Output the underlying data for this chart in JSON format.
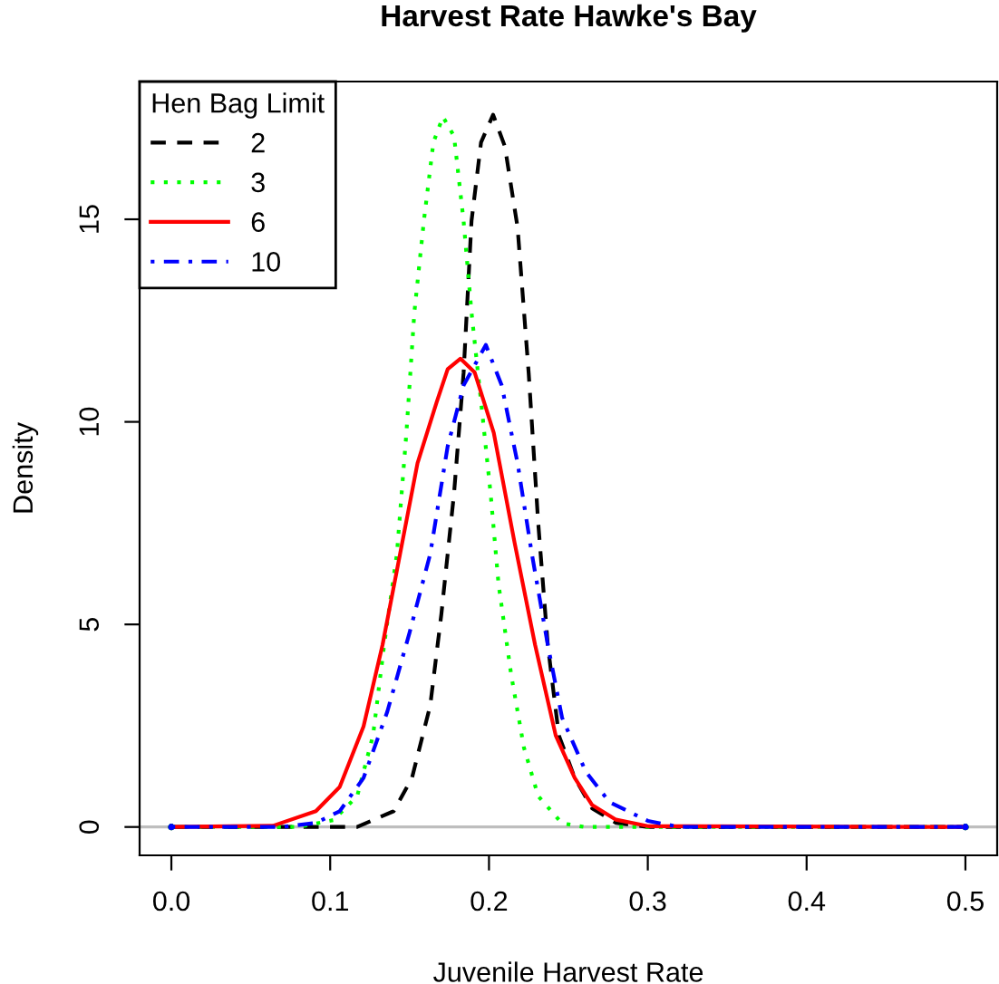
{
  "chart_data": {
    "type": "line",
    "title": "Harvest Rate Hawke's Bay",
    "xlabel": "Juvenile Harvest Rate",
    "ylabel": "Density",
    "legend_title": "Hen Bag Limit",
    "legend": "top left",
    "grid": false,
    "marker": "none",
    "xlim": [
      -0.02,
      0.52
    ],
    "ylim": [
      -0.7,
      18.4
    ],
    "xticks": [
      {
        "value": 0,
        "label": "0.0"
      },
      0.1,
      0.2,
      0.3,
      0.4,
      0.5
    ],
    "yticks": [
      0,
      5,
      10,
      15
    ],
    "ref_lines": [
      {
        "axis": "y",
        "value": 0,
        "color": "#bebebe",
        "line_style": "solid"
      }
    ],
    "series": [
      {
        "name": "2",
        "color": "#000000",
        "line_style": "dashed",
        "x": [
          0,
          0.1,
          0.117,
          0.14,
          0.1515,
          0.163,
          0.17,
          0.178,
          0.184,
          0.189,
          0.195,
          0.2026,
          0.21,
          0.218,
          0.225,
          0.231,
          0.237,
          0.244,
          0.254,
          0.265,
          0.28,
          0.3,
          0.5
        ],
        "values": [
          0,
          0,
          0,
          0.39,
          1.21,
          3.0,
          5.25,
          8.24,
          11.2,
          14.96,
          16.9,
          17.58,
          16.8,
          14.8,
          11.2,
          7.5,
          4.5,
          2.26,
          1.21,
          0.46,
          0.1,
          0,
          0
        ]
      },
      {
        "name": "3",
        "color": "#00ff00",
        "line_style": "dotted",
        "x": [
          0,
          0.08,
          0.102,
          0.117,
          0.127,
          0.134,
          0.142,
          0.148,
          0.153,
          0.159,
          0.165,
          0.171,
          0.178,
          0.184,
          0.189,
          0.195,
          0.201,
          0.206,
          0.214,
          0.222,
          0.231,
          0.246,
          0.26,
          0.5
        ],
        "values": [
          0,
          0,
          0.17,
          0.76,
          2.26,
          4.5,
          6.74,
          9.73,
          12.7,
          14.96,
          16.9,
          17.53,
          17.05,
          14.96,
          12.7,
          10.5,
          8.24,
          6.0,
          3.75,
          1.96,
          0.76,
          0.09,
          0,
          0
        ]
      },
      {
        "name": "6",
        "color": "#ff0000",
        "line_style": "solid",
        "x": [
          0,
          0.064,
          0.091,
          0.106,
          0.121,
          0.133,
          0.144,
          0.155,
          0.167,
          0.174,
          0.182,
          0.191,
          0.203,
          0.216,
          0.229,
          0.242,
          0.254,
          0.265,
          0.28,
          0.3,
          0.5
        ],
        "values": [
          0,
          0.03,
          0.39,
          0.99,
          2.48,
          4.5,
          6.74,
          8.98,
          10.48,
          11.3,
          11.56,
          11.22,
          9.73,
          7.04,
          4.5,
          2.26,
          1.21,
          0.54,
          0.18,
          0.02,
          0
        ]
      },
      {
        "name": "10",
        "color": "#0000ff",
        "line_style": "dashdot",
        "x": [
          0,
          0.07,
          0.091,
          0.106,
          0.121,
          0.136,
          0.15,
          0.163,
          0.174,
          0.184,
          0.198,
          0.208,
          0.218,
          0.227,
          0.237,
          0.246,
          0.261,
          0.276,
          0.3,
          0.32,
          0.5
        ],
        "values": [
          0,
          0,
          0.1,
          0.39,
          1.21,
          2.85,
          4.8,
          6.74,
          9.4,
          10.9,
          11.9,
          10.9,
          8.98,
          6.74,
          4.5,
          2.7,
          1.36,
          0.61,
          0.15,
          0,
          0
        ]
      }
    ]
  }
}
